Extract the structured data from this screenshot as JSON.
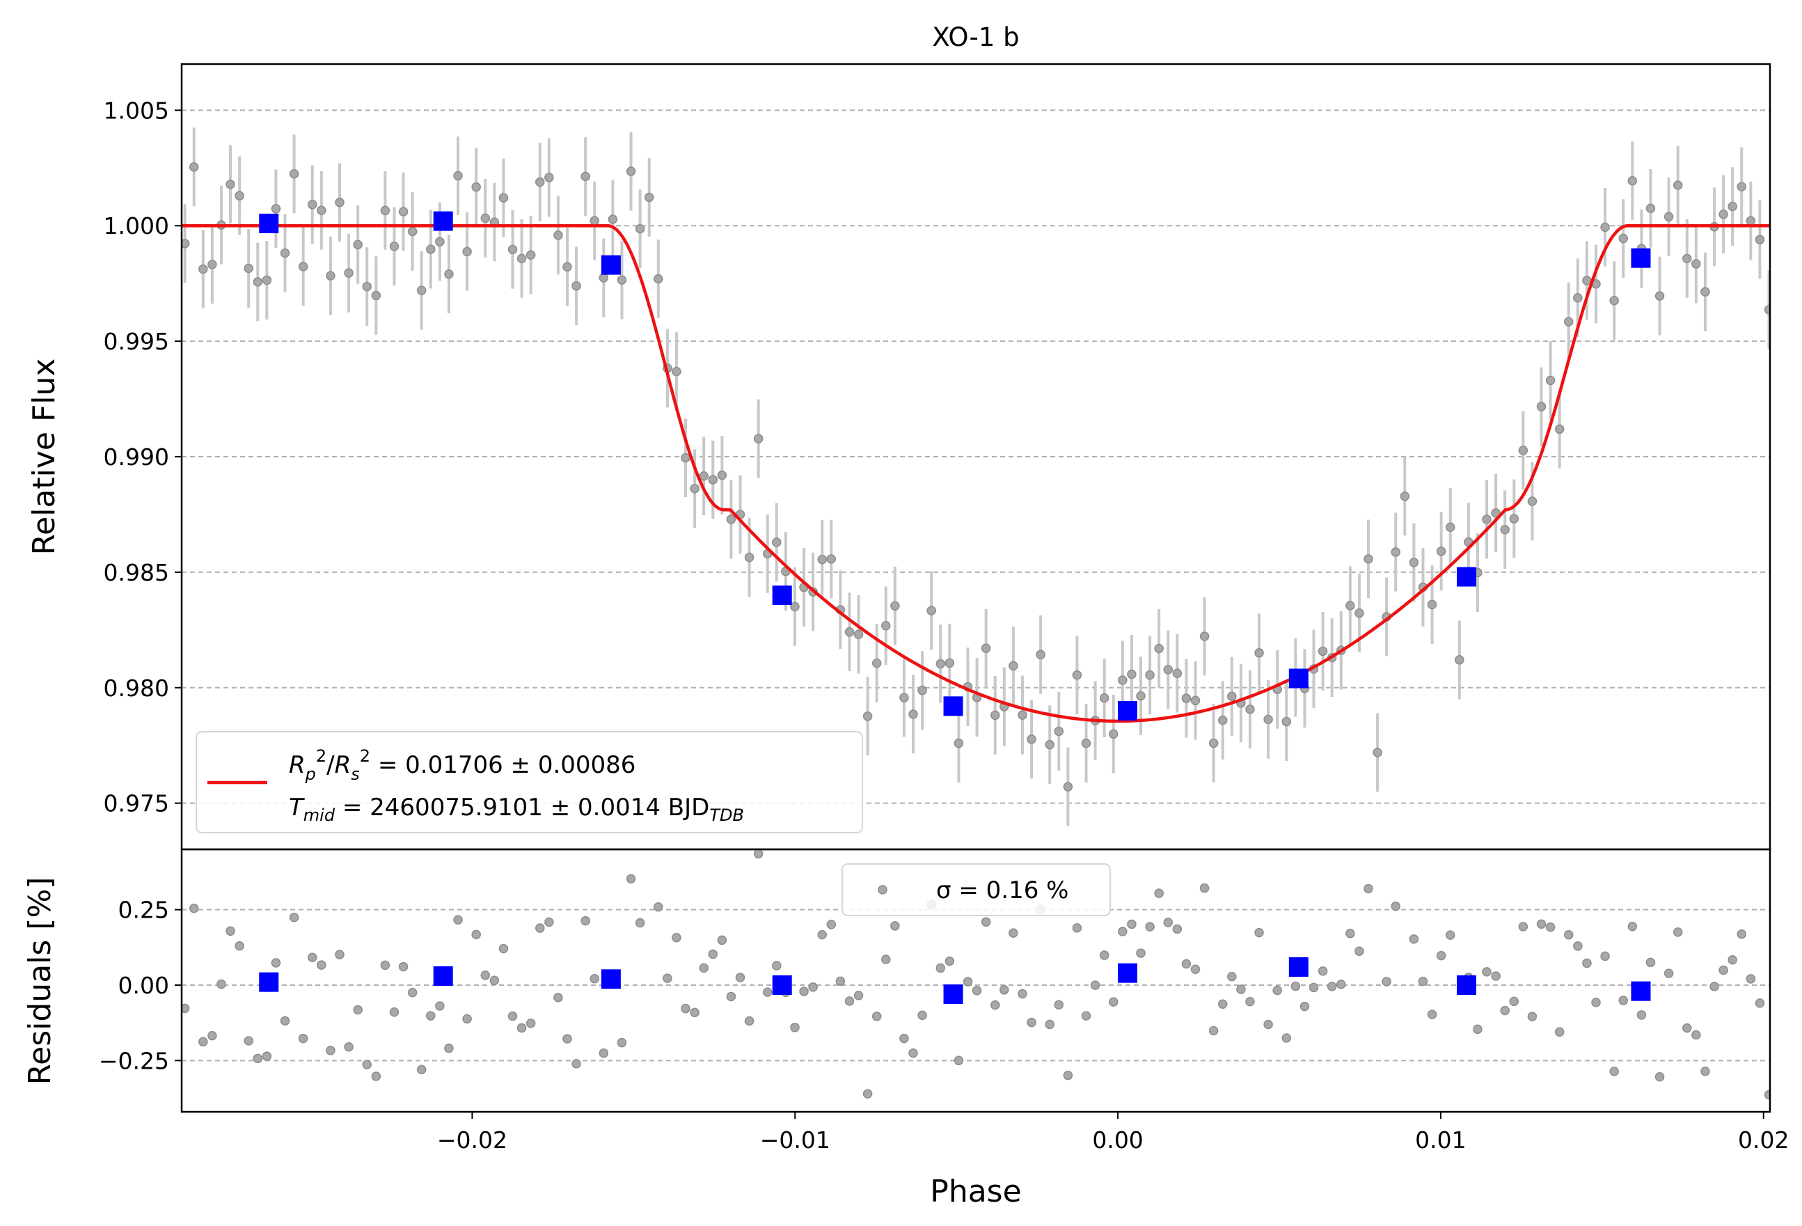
{
  "chart_data": [
    {
      "type": "scatter",
      "panel": "light-curve",
      "title": "XO-1 b",
      "xlabel": "",
      "ylabel": "Relative Flux",
      "xlim": [
        -0.029,
        0.0202
      ],
      "ylim": [
        0.973,
        1.007
      ],
      "yticks": [
        0.975,
        0.98,
        0.985,
        0.99,
        0.995,
        1.0,
        1.005
      ],
      "ytick_labels": [
        "0.975",
        "0.980",
        "0.985",
        "0.990",
        "0.995",
        "1.000",
        "1.005"
      ],
      "grid": "y dashed",
      "legend_position": "lower-left",
      "legend": {
        "model_line_1": "R²p/R²s = 0.01706 ± 0.00086",
        "model_line_2": "Tmid = 2460075.9101 ± 0.0014 BJDTDB"
      },
      "colors": {
        "data": "#8c8c8c",
        "binned": "#0000ff",
        "model": "#ee1111",
        "error": "#c8c8c8"
      },
      "transit_model": {
        "rp_rs_squared": 0.01706,
        "t_first_contact": -0.0158,
        "t_second_contact": -0.0122,
        "t_third_contact": 0.012,
        "t_fourth_contact": 0.0158,
        "baseline": 1.0,
        "min_flux": 0.97855
      },
      "binned": {
        "x": [
          -0.0263,
          -0.0209,
          -0.0157,
          -0.0104,
          -0.0051,
          0.0003,
          0.0056,
          0.0108,
          0.0162
        ],
        "y": [
          1.0001,
          1.0002,
          0.9983,
          0.984,
          0.9792,
          0.979,
          0.9804,
          0.9848,
          0.9986
        ],
        "yerr": [
          0.0004,
          0.0004,
          0.0004,
          0.0004,
          0.0004,
          0.0004,
          0.0004,
          0.0004,
          0.0004
        ]
      },
      "data_summary": {
        "n_points": 176,
        "typical_yerr": 0.0017,
        "x_start": -0.0289,
        "x_step": 0.000282
      }
    },
    {
      "type": "scatter",
      "panel": "residuals",
      "title": "",
      "xlabel": "Phase",
      "ylabel": "Residuals [%]",
      "xlim": [
        -0.029,
        0.0202
      ],
      "ylim": [
        -0.42,
        0.45
      ],
      "xticks": [
        -0.02,
        -0.01,
        0.0,
        0.01,
        0.02
      ],
      "xtick_labels": [
        "−0.02",
        "−0.01",
        "0.00",
        "0.01",
        "0.02"
      ],
      "yticks": [
        -0.25,
        0.0,
        0.25
      ],
      "ytick_labels": [
        "−0.25",
        "0.00",
        "0.25"
      ],
      "grid": "y dashed",
      "legend_position": "upper-center",
      "legend": {
        "label": "σ = 0.16 %"
      },
      "binned": {
        "x": [
          -0.0263,
          -0.0209,
          -0.0157,
          -0.0104,
          -0.0051,
          0.0003,
          0.0056,
          0.0108,
          0.0162
        ],
        "y": [
          0.01,
          0.03,
          0.02,
          0.0,
          -0.03,
          0.04,
          0.06,
          0.0,
          -0.02
        ]
      },
      "data_summary": {
        "n_points": 176,
        "sigma_percent": 0.16
      }
    }
  ]
}
